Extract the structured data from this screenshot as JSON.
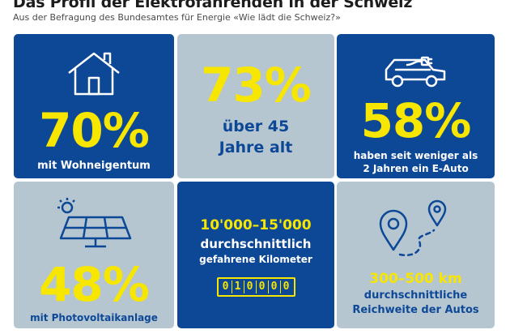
{
  "header": {
    "title": "Das Profil der Elektrofahrenden in der Schweiz",
    "subtitle": "Aus der Befragung des Bundesamtes für Energie «Wie lädt die Schweiz?»"
  },
  "tiles": [
    {
      "value": "70%",
      "caption": "mit Wohneigentum",
      "icon": "house-icon"
    },
    {
      "value": "73%",
      "caption_line1": "über 45",
      "caption_line2": "Jahre alt"
    },
    {
      "value": "58%",
      "caption_line1": "haben seit weniger als",
      "caption_line2": "2 Jahren ein E-Auto",
      "icon": "electric-car-icon"
    },
    {
      "value": "48%",
      "caption": "mit Photovoltaikanlage",
      "icon": "solar-panel-icon"
    },
    {
      "value": "10'000–15'000",
      "caption_line1": "durchschnittlich",
      "caption_line2": "gefahrene Kilometer",
      "odometer": [
        "0",
        "1",
        "0",
        "0",
        "0",
        "0"
      ],
      "icon": "odometer-icon"
    },
    {
      "value": "300–500 km",
      "caption_line1": "durchschnittliche",
      "caption_line2": "Reichweite der Autos",
      "icon": "route-pins-icon"
    }
  ],
  "colors": {
    "blue": "#0d4897",
    "grey": "#b5c6d1",
    "yellow": "#f7e600"
  }
}
